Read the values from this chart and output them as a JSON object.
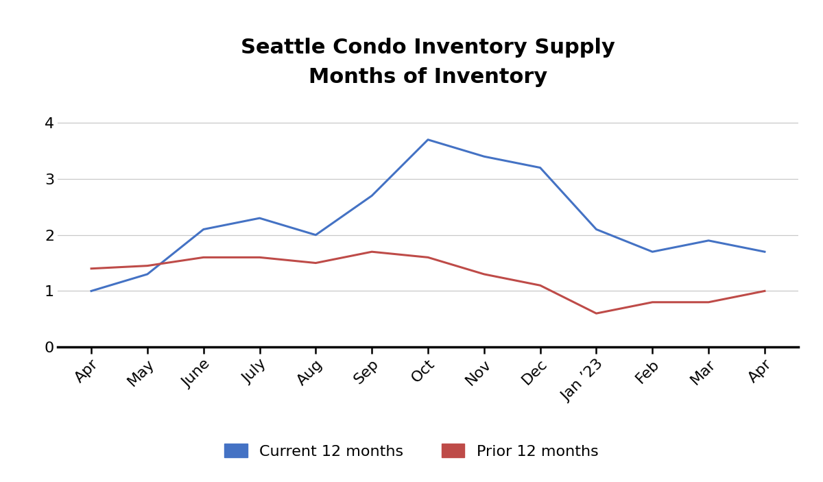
{
  "title_line1": "Seattle Condo Inventory Supply",
  "title_line2": "Months of Inventory",
  "categories": [
    "Apr",
    "May",
    "June",
    "July",
    "Aug",
    "Sep",
    "Oct",
    "Nov",
    "Dec",
    "Jan ’23",
    "Feb",
    "Mar",
    "Apr"
  ],
  "current_12": [
    1.0,
    1.3,
    2.1,
    2.3,
    2.0,
    2.7,
    3.7,
    3.4,
    3.2,
    2.1,
    1.7,
    1.9,
    1.7
  ],
  "prior_12": [
    1.4,
    1.45,
    1.6,
    1.6,
    1.5,
    1.7,
    1.6,
    1.3,
    1.1,
    0.6,
    0.8,
    0.8,
    1.0
  ],
  "current_color": "#4472C4",
  "prior_color": "#BE4B48",
  "ylim": [
    0,
    4.3
  ],
  "yticks": [
    0,
    1,
    2,
    3,
    4
  ],
  "legend_current": "Current 12 months",
  "legend_prior": "Prior 12 months",
  "background_color": "#ffffff",
  "line_width": 2.2,
  "title_fontsize": 22,
  "tick_fontsize": 16,
  "legend_fontsize": 16
}
